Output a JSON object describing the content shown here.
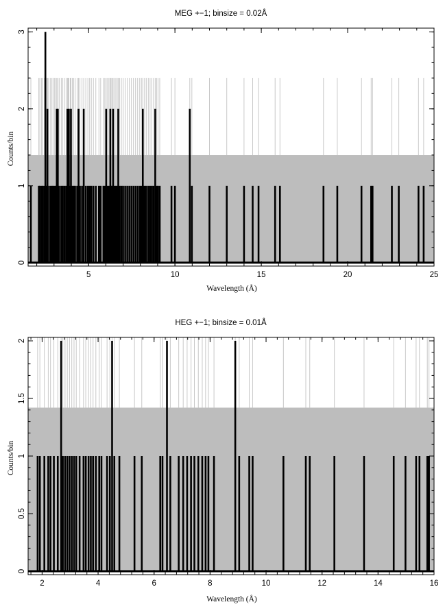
{
  "chart_data": [
    {
      "type": "bar",
      "title": "MEG +−1; binsize = 0.02Å",
      "xlabel": "Wavelength (Å)",
      "ylabel": "Counts/bin",
      "xlim": [
        1.5,
        25
      ],
      "ylim": [
        0,
        3.05
      ],
      "x_ticks": [
        5,
        10,
        15,
        20,
        25
      ],
      "y_ticks": [
        0,
        1,
        2,
        3
      ],
      "background_level": 1.4,
      "background_color": "#bdbdbd",
      "error_bar_top": 2.4,
      "error_line_color": "#c8c8c8",
      "counts_color": "#000000",
      "series": [
        {
          "bins": [
            [
              1.66,
              1
            ],
            [
              2.12,
              1
            ],
            [
              2.18,
              1
            ],
            [
              2.28,
              1
            ],
            [
              2.34,
              1
            ],
            [
              2.44,
              1
            ],
            [
              2.5,
              3
            ],
            [
              2.58,
              1
            ],
            [
              2.62,
              2
            ],
            [
              2.66,
              1
            ],
            [
              2.78,
              1
            ],
            [
              2.86,
              1
            ],
            [
              2.94,
              1
            ],
            [
              3.02,
              1
            ],
            [
              3.1,
              1
            ],
            [
              3.16,
              2
            ],
            [
              3.22,
              2
            ],
            [
              3.3,
              1
            ],
            [
              3.42,
              1
            ],
            [
              3.5,
              1
            ],
            [
              3.6,
              1
            ],
            [
              3.7,
              1
            ],
            [
              3.78,
              2
            ],
            [
              3.82,
              1
            ],
            [
              3.86,
              2
            ],
            [
              3.94,
              1
            ],
            [
              3.98,
              2
            ],
            [
              4.06,
              1
            ],
            [
              4.14,
              1
            ],
            [
              4.22,
              1
            ],
            [
              4.34,
              1
            ],
            [
              4.42,
              2
            ],
            [
              4.5,
              1
            ],
            [
              4.62,
              1
            ],
            [
              4.72,
              2
            ],
            [
              4.84,
              1
            ],
            [
              4.96,
              1
            ],
            [
              5.06,
              1
            ],
            [
              5.16,
              1
            ],
            [
              5.28,
              1
            ],
            [
              5.42,
              1
            ],
            [
              5.6,
              1
            ],
            [
              5.7,
              1
            ],
            [
              5.86,
              1
            ],
            [
              5.94,
              1
            ],
            [
              6.02,
              2
            ],
            [
              6.1,
              1
            ],
            [
              6.18,
              1
            ],
            [
              6.26,
              2
            ],
            [
              6.3,
              1
            ],
            [
              6.36,
              1
            ],
            [
              6.42,
              2
            ],
            [
              6.5,
              1
            ],
            [
              6.58,
              1
            ],
            [
              6.66,
              1
            ],
            [
              6.72,
              2
            ],
            [
              6.8,
              1
            ],
            [
              6.9,
              1
            ],
            [
              7.0,
              1
            ],
            [
              7.12,
              1
            ],
            [
              7.24,
              1
            ],
            [
              7.36,
              1
            ],
            [
              7.48,
              1
            ],
            [
              7.6,
              1
            ],
            [
              7.72,
              1
            ],
            [
              7.84,
              1
            ],
            [
              7.96,
              1
            ],
            [
              8.06,
              1
            ],
            [
              8.14,
              2
            ],
            [
              8.24,
              1
            ],
            [
              8.34,
              1
            ],
            [
              8.46,
              1
            ],
            [
              8.56,
              1
            ],
            [
              8.66,
              1
            ],
            [
              8.76,
              1
            ],
            [
              8.86,
              2
            ],
            [
              8.94,
              1
            ],
            [
              9.02,
              1
            ],
            [
              9.12,
              1
            ],
            [
              9.8,
              1
            ],
            [
              10.0,
              1
            ],
            [
              10.86,
              2
            ],
            [
              10.98,
              1
            ],
            [
              12.0,
              1
            ],
            [
              13.0,
              1
            ],
            [
              14.0,
              1
            ],
            [
              14.5,
              1
            ],
            [
              14.84,
              1
            ],
            [
              15.8,
              1
            ],
            [
              16.08,
              1
            ],
            [
              18.6,
              1
            ],
            [
              19.4,
              1
            ],
            [
              20.8,
              1
            ],
            [
              21.36,
              1
            ],
            [
              21.44,
              1
            ],
            [
              22.56,
              1
            ],
            [
              22.96,
              1
            ],
            [
              24.1,
              1
            ],
            [
              24.4,
              1
            ]
          ]
        }
      ]
    },
    {
      "type": "bar",
      "title": "HEG +−1; binsize = 0.01Å",
      "xlabel": "Wavelength (Å)",
      "ylabel": "Counts/bin",
      "xlim": [
        1.5,
        16
      ],
      "ylim": [
        0,
        2.03
      ],
      "x_ticks": [
        2,
        4,
        6,
        8,
        10,
        12,
        14,
        16
      ],
      "y_ticks": [
        0,
        0.5,
        1,
        1.5,
        2
      ],
      "y_tick_labels": [
        "0",
        "0.5",
        "1",
        "1.5",
        "2"
      ],
      "background_level": 1.42,
      "background_color": "#bdbdbd",
      "error_bar_top": 2.03,
      "error_line_color": "#c8c8c8",
      "counts_color": "#000000",
      "series": [
        {
          "bins": [
            [
              1.84,
              1
            ],
            [
              1.92,
              1
            ],
            [
              2.08,
              1
            ],
            [
              2.22,
              1
            ],
            [
              2.3,
              1
            ],
            [
              2.42,
              1
            ],
            [
              2.56,
              1
            ],
            [
              2.68,
              2
            ],
            [
              2.74,
              1
            ],
            [
              2.82,
              1
            ],
            [
              2.9,
              1
            ],
            [
              2.98,
              1
            ],
            [
              3.06,
              1
            ],
            [
              3.14,
              1
            ],
            [
              3.22,
              1
            ],
            [
              3.34,
              1
            ],
            [
              3.48,
              1
            ],
            [
              3.56,
              1
            ],
            [
              3.66,
              1
            ],
            [
              3.74,
              1
            ],
            [
              3.82,
              1
            ],
            [
              3.92,
              1
            ],
            [
              4.04,
              1
            ],
            [
              4.12,
              1
            ],
            [
              4.32,
              1
            ],
            [
              4.42,
              1
            ],
            [
              4.5,
              2
            ],
            [
              4.58,
              1
            ],
            [
              4.76,
              1
            ],
            [
              5.3,
              1
            ],
            [
              5.56,
              1
            ],
            [
              6.22,
              1
            ],
            [
              6.3,
              1
            ],
            [
              6.46,
              2
            ],
            [
              6.58,
              1
            ],
            [
              6.88,
              1
            ],
            [
              7.04,
              1
            ],
            [
              7.18,
              1
            ],
            [
              7.32,
              1
            ],
            [
              7.44,
              1
            ],
            [
              7.58,
              1
            ],
            [
              7.72,
              1
            ],
            [
              7.84,
              1
            ],
            [
              7.94,
              1
            ],
            [
              8.14,
              1
            ],
            [
              8.9,
              2
            ],
            [
              9.04,
              1
            ],
            [
              9.4,
              1
            ],
            [
              9.52,
              1
            ],
            [
              10.62,
              1
            ],
            [
              11.42,
              1
            ],
            [
              11.56,
              1
            ],
            [
              12.44,
              1
            ],
            [
              13.5,
              1
            ],
            [
              14.56,
              1
            ],
            [
              14.98,
              1
            ],
            [
              15.36,
              1
            ],
            [
              15.48,
              1
            ],
            [
              15.76,
              1
            ],
            [
              15.82,
              1
            ]
          ]
        }
      ]
    }
  ]
}
